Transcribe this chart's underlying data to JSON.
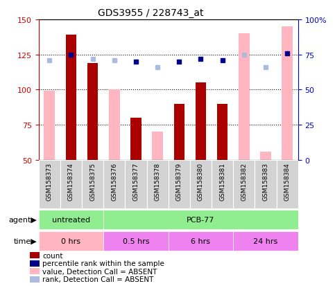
{
  "title": "GDS3955 / 228743_at",
  "samples": [
    "GSM158373",
    "GSM158374",
    "GSM158375",
    "GSM158376",
    "GSM158377",
    "GSM158378",
    "GSM158379",
    "GSM158380",
    "GSM158381",
    "GSM158382",
    "GSM158383",
    "GSM158384"
  ],
  "count_values": [
    null,
    139,
    119,
    null,
    80,
    null,
    90,
    105,
    90,
    null,
    null,
    null
  ],
  "count_absent_values": [
    99,
    null,
    null,
    100,
    null,
    70,
    null,
    null,
    null,
    140,
    56,
    145
  ],
  "rank_values": [
    null,
    75,
    null,
    null,
    70,
    null,
    70,
    72,
    71,
    null,
    null,
    76
  ],
  "rank_absent_values": [
    71,
    null,
    72,
    71,
    null,
    66,
    null,
    null,
    null,
    75,
    66,
    null
  ],
  "ylim_left": [
    50,
    150
  ],
  "ylim_right": [
    0,
    100
  ],
  "yticks_left": [
    50,
    75,
    100,
    125,
    150
  ],
  "yticks_right": [
    0,
    25,
    50,
    75,
    100
  ],
  "ytick_labels_right": [
    "0",
    "25",
    "50",
    "75",
    "100%"
  ],
  "bar_width": 0.5,
  "count_color": "#AA0000",
  "count_absent_color": "#FFB6C1",
  "rank_color": "#00008B",
  "rank_absent_color": "#AABBDD",
  "tick_color_left": "#CC0000",
  "tick_color_right": "#0000CC"
}
